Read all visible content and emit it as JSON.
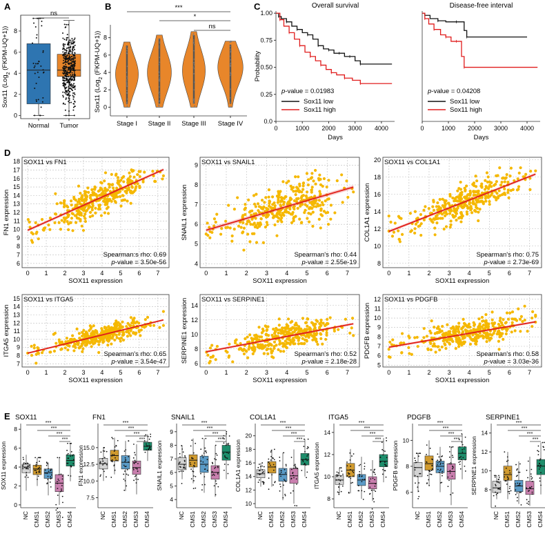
{
  "colors": {
    "orange": "#E8862A",
    "blue": "#2E75B1",
    "red": "#E01B1B",
    "black": "#111111",
    "scatter": "#F5B800",
    "scatter_line": "#E0201A",
    "cms": {
      "NC": "#D3D3D3",
      "CMS1": "#D19B2F",
      "CMS2": "#5A9BC7",
      "CMS3": "#C97FAE",
      "CMS4": "#1E8E6C"
    }
  },
  "panel_labels": {
    "A": "A",
    "B": "B",
    "C": "C",
    "D": "D",
    "E": "E"
  },
  "chart_data": [
    {
      "id": "A",
      "type": "box",
      "ylabel_prefix": "Sox11 (Log",
      "ylabel_sub": "2",
      "ylabel_suffix": " (FKPM-UQ+1))",
      "categories": [
        "Normal",
        "Tumor"
      ],
      "ylim": [
        -0.3,
        9.5
      ],
      "yticks": [
        0,
        2,
        4,
        6,
        8
      ],
      "boxes": [
        {
          "category": "Normal",
          "q1": 1.1,
          "median": 4.3,
          "q3": 6.8,
          "whisker_low": 0,
          "whisker_high": 9.2,
          "n_points": 40
        },
        {
          "category": "Tumor",
          "q1": 3.7,
          "median": 4.3,
          "q3": 5.8,
          "whisker_low": 0,
          "whisker_high": 9.0,
          "n_points": 450
        }
      ],
      "annotation": "ns"
    },
    {
      "id": "B",
      "type": "violin",
      "ylabel_prefix": "Sox11 (Log",
      "ylabel_sub": "2",
      "ylabel_suffix": " (FKPM-UQ+1))",
      "categories": [
        "Stage I",
        "Stage II",
        "Stage III",
        "Stage IV"
      ],
      "ylim": [
        -1,
        9
      ],
      "yticks": [
        0,
        2,
        4,
        6,
        8
      ],
      "violins": [
        {
          "category": "Stage I",
          "min": 0,
          "max": 7.5,
          "mode": 3.8,
          "width": 0.9
        },
        {
          "category": "Stage II",
          "min": 0,
          "max": 8.3,
          "mode": 4.0,
          "width": 0.95
        },
        {
          "category": "Stage III",
          "min": 0,
          "max": 8.7,
          "mode": 4.2,
          "width": 0.9
        },
        {
          "category": "Stage IV",
          "min": 0,
          "max": 7.6,
          "mode": 4.6,
          "width": 1.0
        }
      ],
      "significance": [
        {
          "from": "Stage I",
          "to": "Stage IV",
          "label": "***"
        },
        {
          "from": "Stage II",
          "to": "Stage IV",
          "label": "*"
        },
        {
          "from": "Stage III",
          "to": "Stage IV",
          "label": "ns"
        }
      ]
    },
    {
      "id": "C1",
      "type": "line",
      "title": "Overall survival",
      "xlabel": "Days",
      "ylabel": "Probability",
      "xlim": [
        0,
        4500
      ],
      "ylim": [
        0,
        1.02
      ],
      "xticks": [
        0,
        1000,
        2000,
        3000,
        4000
      ],
      "yticks": [
        0,
        0.25,
        0.5,
        0.75,
        1.0
      ],
      "ytick_labels": [
        "0.0",
        "0.25",
        "0.50",
        "0.75",
        "1.00"
      ],
      "pvalue_label": "p",
      "pvalue_text": "-value = 0.01983",
      "series": [
        {
          "name": "Sox11 low",
          "color": "black",
          "x": [
            0,
            100,
            200,
            400,
            600,
            800,
            1000,
            1200,
            1400,
            1600,
            1800,
            2000,
            2200,
            2400,
            2600,
            2800,
            3000,
            3200,
            4400
          ],
          "y": [
            1,
            0.97,
            0.95,
            0.92,
            0.88,
            0.85,
            0.82,
            0.8,
            0.76,
            0.7,
            0.67,
            0.66,
            0.63,
            0.63,
            0.6,
            0.6,
            0.56,
            0.53,
            0.53
          ]
        },
        {
          "name": "Sox11 high",
          "color": "red",
          "x": [
            0,
            150,
            300,
            500,
            700,
            900,
            1100,
            1300,
            1500,
            1700,
            1900,
            2100,
            2300,
            2600,
            2900,
            3200,
            4400
          ],
          "y": [
            1,
            0.94,
            0.88,
            0.82,
            0.76,
            0.7,
            0.64,
            0.6,
            0.56,
            0.52,
            0.48,
            0.45,
            0.43,
            0.4,
            0.38,
            0.35,
            0.35
          ]
        }
      ]
    },
    {
      "id": "C2",
      "type": "line",
      "title": "Disease-free interval",
      "xlabel": "Days",
      "ylabel": "",
      "xlim": [
        0,
        4500
      ],
      "ylim": [
        0,
        1.02
      ],
      "xticks": [
        0,
        1000,
        2000,
        3000,
        4000
      ],
      "pvalue_label": "p",
      "pvalue_text": "-value = 0.04208",
      "series": [
        {
          "name": "Sox11 low",
          "color": "black",
          "x": [
            0,
            100,
            300,
            600,
            900,
            1300,
            1600,
            1700,
            4000
          ],
          "y": [
            1,
            0.98,
            0.95,
            0.93,
            0.92,
            0.92,
            0.84,
            0.78,
            0.78
          ]
        },
        {
          "name": "Sox11 high",
          "color": "red",
          "x": [
            0,
            100,
            250,
            450,
            700,
            900,
            1100,
            1300,
            1500,
            1600,
            4400
          ],
          "y": [
            1,
            0.95,
            0.9,
            0.85,
            0.8,
            0.78,
            0.74,
            0.74,
            0.6,
            0.5,
            0.5
          ]
        }
      ]
    },
    {
      "id": "D1",
      "type": "scatter",
      "title": "SOX11 vs FN1",
      "xlabel": "SOX11 expression",
      "ylabel": "FN1 expression",
      "xlim": [
        -0.3,
        7.6
      ],
      "ylim": [
        5.5,
        18.5
      ],
      "xticks": [
        0,
        1,
        2,
        3,
        4,
        5,
        6,
        7
      ],
      "yticks": [
        6,
        7,
        8,
        9,
        10,
        11,
        12,
        13,
        14,
        15,
        16,
        17,
        18
      ],
      "fit": {
        "intercept": 9.9,
        "slope": 0.98
      },
      "spread": 1.4,
      "seed": 11,
      "rho_text": "Spearman:s rho: 0.69",
      "p_label": "p",
      "p_text": "-value = 3.50e-56"
    },
    {
      "id": "D2",
      "type": "scatter",
      "title": "SOX11 vs SNAIL1",
      "xlabel": "SOX11 expression",
      "ylabel": "SNAIL1 expression",
      "xlim": [
        -0.3,
        7.6
      ],
      "ylim": [
        3.8,
        9.4
      ],
      "xticks": [
        0,
        1,
        2,
        3,
        4,
        5,
        6,
        7
      ],
      "yticks": [
        4,
        5,
        6,
        7,
        8,
        9
      ],
      "fit": {
        "intercept": 5.7,
        "slope": 0.3
      },
      "spread": 0.8,
      "seed": 22,
      "rho_text": "Spearman's rho: 0.44",
      "p_label": "p",
      "p_text": "-value = 2.55e-19"
    },
    {
      "id": "D3",
      "type": "scatter",
      "title": "SOX11 vs COL1A1",
      "xlabel": "SOX11 expression",
      "ylabel": "COL1A1 expression",
      "xlim": [
        -0.3,
        7.6
      ],
      "ylim": [
        7.5,
        20.3
      ],
      "xticks": [
        0,
        1,
        2,
        3,
        4,
        5,
        6,
        7
      ],
      "yticks": [
        8,
        10,
        12,
        14,
        16,
        18,
        20
      ],
      "fit": {
        "intercept": 11.7,
        "slope": 0.91
      },
      "spread": 1.3,
      "seed": 33,
      "rho_text": "Spearman's rho: 0.75",
      "p_label": "p",
      "p_text": "-value = 2.73e-69"
    },
    {
      "id": "D4",
      "type": "scatter",
      "title": "SOX11 vs ITGA5",
      "xlabel": "SOX11 expression",
      "ylabel": "ITGA5 expression",
      "xlim": [
        -0.3,
        7.6
      ],
      "ylim": [
        6.6,
        15.5
      ],
      "xticks": [
        0,
        1,
        2,
        3,
        4,
        5,
        6,
        7
      ],
      "yticks": [
        7,
        8,
        9,
        10,
        11,
        12,
        13,
        14,
        15
      ],
      "fit": {
        "intercept": 8.3,
        "slope": 0.56
      },
      "spread": 0.9,
      "seed": 44,
      "rho_text": "Spearman's rho: 0.65",
      "p_label": "p",
      "p_text": "-value = 3.54e-47"
    },
    {
      "id": "D5",
      "type": "scatter",
      "title": "SOX11 vs SERPINE1",
      "xlabel": "SOX11 expression",
      "ylabel": "SERPINE1 expression",
      "xlim": [
        -0.3,
        7.6
      ],
      "ylim": [
        5.5,
        15.5
      ],
      "xticks": [
        0,
        1,
        2,
        3,
        4,
        5,
        6,
        7
      ],
      "yticks": [
        6,
        8,
        10,
        12,
        14
      ],
      "fit": {
        "intercept": 7.6,
        "slope": 0.53
      },
      "spread": 1.3,
      "seed": 55,
      "rho_text": "Spearman's rho: 0.52",
      "p_label": "p",
      "p_text": "-value = 2.18e-28"
    },
    {
      "id": "D6",
      "type": "scatter",
      "title": "SOX11 vs PDGFB",
      "xlabel": "SOX11 expression",
      "ylabel": "PDGFB expression",
      "xlim": [
        -0.3,
        7.6
      ],
      "ylim": [
        4.8,
        12.5
      ],
      "xticks": [
        0,
        1,
        2,
        3,
        4,
        5,
        6,
        7
      ],
      "yticks": [
        5,
        6,
        7,
        8,
        9,
        10,
        11,
        12
      ],
      "fit": {
        "intercept": 6.9,
        "slope": 0.37
      },
      "spread": 1.0,
      "seed": 66,
      "rho_text": "Spearman's rho: 0.58",
      "p_label": "p",
      "p_text": "-value = 3.03e-36"
    },
    {
      "id": "E",
      "type": "box",
      "groups": [
        "NC",
        "CMS1",
        "CMS2",
        "CMS3",
        "CMS4"
      ],
      "sig_label": "***",
      "panels": [
        {
          "title": "SOX11",
          "ylabel": "SOX11 expression",
          "ylim": [
            -0.3,
            8.6
          ],
          "yticks": [
            0,
            2,
            4,
            6,
            8
          ],
          "boxes": [
            [
              3.4,
              4.0,
              4.3
            ],
            [
              3.2,
              3.8,
              4.2
            ],
            [
              2.8,
              3.4,
              3.8
            ],
            [
              1.4,
              2.3,
              3.2
            ],
            [
              4.1,
              4.7,
              5.3
            ]
          ],
          "whiskers": [
            [
              1.5,
              5.3
            ],
            [
              2.0,
              5.0
            ],
            [
              1.0,
              4.5
            ],
            [
              0,
              5.0
            ],
            [
              2.5,
              6.5
            ]
          ]
        },
        {
          "title": "FN1",
          "ylabel": "FN1 expression",
          "ylim": [
            6.0,
            18.6
          ],
          "yticks": [
            7.5,
            10.0,
            12.5,
            15.0
          ],
          "ytick_labels": [
            "7.5",
            "10.0",
            "12.5",
            "15.0"
          ],
          "boxes": [
            [
              11.8,
              12.6,
              13.4
            ],
            [
              13.0,
              13.8,
              14.6
            ],
            [
              11.8,
              12.8,
              13.8
            ],
            [
              11.0,
              12.0,
              13.0
            ],
            [
              14.6,
              15.2,
              15.8
            ]
          ],
          "whiskers": [
            [
              10.0,
              15.0
            ],
            [
              11.0,
              16.5
            ],
            [
              8.5,
              16.0
            ],
            [
              8.0,
              15.5
            ],
            [
              13.0,
              17.0
            ]
          ]
        },
        {
          "title": "SNAIL1",
          "ylabel": "SNAIL1 expression",
          "ylim": [
            3.4,
            9.6
          ],
          "yticks": [
            4,
            5,
            6,
            7,
            8,
            9
          ],
          "boxes": [
            [
              6.2,
              6.6,
              7.1
            ],
            [
              6.4,
              6.9,
              7.3
            ],
            [
              6.0,
              6.6,
              7.2
            ],
            [
              5.5,
              6.0,
              6.5
            ],
            [
              6.9,
              7.5,
              8.0
            ]
          ],
          "whiskers": [
            [
              5.5,
              8.0
            ],
            [
              5.2,
              8.5
            ],
            [
              4.5,
              8.5
            ],
            [
              4.2,
              8.0
            ],
            [
              5.5,
              9.0
            ]
          ]
        },
        {
          "title": "COL1A1",
          "ylabel": "COL1A1 expression",
          "ylim": [
            9.4,
            21.8
          ],
          "yticks": [
            10,
            12,
            14,
            16,
            18,
            20
          ],
          "boxes": [
            [
              13.8,
              14.4,
              15.0
            ],
            [
              14.5,
              15.4,
              16.2
            ],
            [
              13.3,
              14.3,
              15.2
            ],
            [
              13.0,
              14.1,
              15.2
            ],
            [
              15.7,
              16.5,
              17.4
            ]
          ],
          "whiskers": [
            [
              12.5,
              16.0
            ],
            [
              12.5,
              18.0
            ],
            [
              10.5,
              17.5
            ],
            [
              10.0,
              18.0
            ],
            [
              14.0,
              19.5
            ]
          ]
        },
        {
          "title": "ITGA5",
          "ylabel": "ITGA5 expression",
          "ylim": [
            7.2,
            14.8
          ],
          "yticks": [
            8,
            10,
            12,
            14
          ],
          "boxes": [
            [
              9.3,
              9.7,
              10.1
            ],
            [
              10.0,
              10.6,
              11.2
            ],
            [
              9.2,
              9.7,
              10.2
            ],
            [
              8.9,
              9.4,
              10.0
            ],
            [
              10.9,
              11.4,
              12.0
            ]
          ],
          "whiskers": [
            [
              8.5,
              10.8
            ],
            [
              8.5,
              12.5
            ],
            [
              8.0,
              11.8
            ],
            [
              7.8,
              11.5
            ],
            [
              9.5,
              13.5
            ]
          ]
        },
        {
          "title": "PDGFB",
          "ylabel": "PDGFB expression",
          "ylim": [
            4.8,
            11.3
          ],
          "yticks": [
            6,
            8,
            10
          ],
          "boxes": [
            [
              7.2,
              7.9,
              8.3
            ],
            [
              7.7,
              8.2,
              8.8
            ],
            [
              7.5,
              8.0,
              8.4
            ],
            [
              7.0,
              7.6,
              8.2
            ],
            [
              8.5,
              9.0,
              9.5
            ]
          ],
          "whiskers": [
            [
              6.0,
              9.0
            ],
            [
              6.5,
              10.0
            ],
            [
              6.0,
              9.5
            ],
            [
              5.0,
              9.5
            ],
            [
              7.0,
              10.5
            ]
          ]
        },
        {
          "title": "SERPINE1",
          "ylabel": "SERPINE1 expression",
          "ylim": [
            6.1,
            15.0
          ],
          "yticks": [
            8,
            10,
            12,
            14
          ],
          "boxes": [
            [
              7.7,
              8.2,
              8.9
            ],
            [
              9.0,
              9.6,
              10.5
            ],
            [
              7.8,
              8.4,
              9.0
            ],
            [
              7.5,
              8.1,
              8.9
            ],
            [
              9.6,
              10.5,
              11.2
            ]
          ],
          "whiskers": [
            [
              7.0,
              9.5
            ],
            [
              7.0,
              12.0
            ],
            [
              6.5,
              11.0
            ],
            [
              6.3,
              11.5
            ],
            [
              7.5,
              13.0
            ]
          ]
        }
      ]
    }
  ]
}
